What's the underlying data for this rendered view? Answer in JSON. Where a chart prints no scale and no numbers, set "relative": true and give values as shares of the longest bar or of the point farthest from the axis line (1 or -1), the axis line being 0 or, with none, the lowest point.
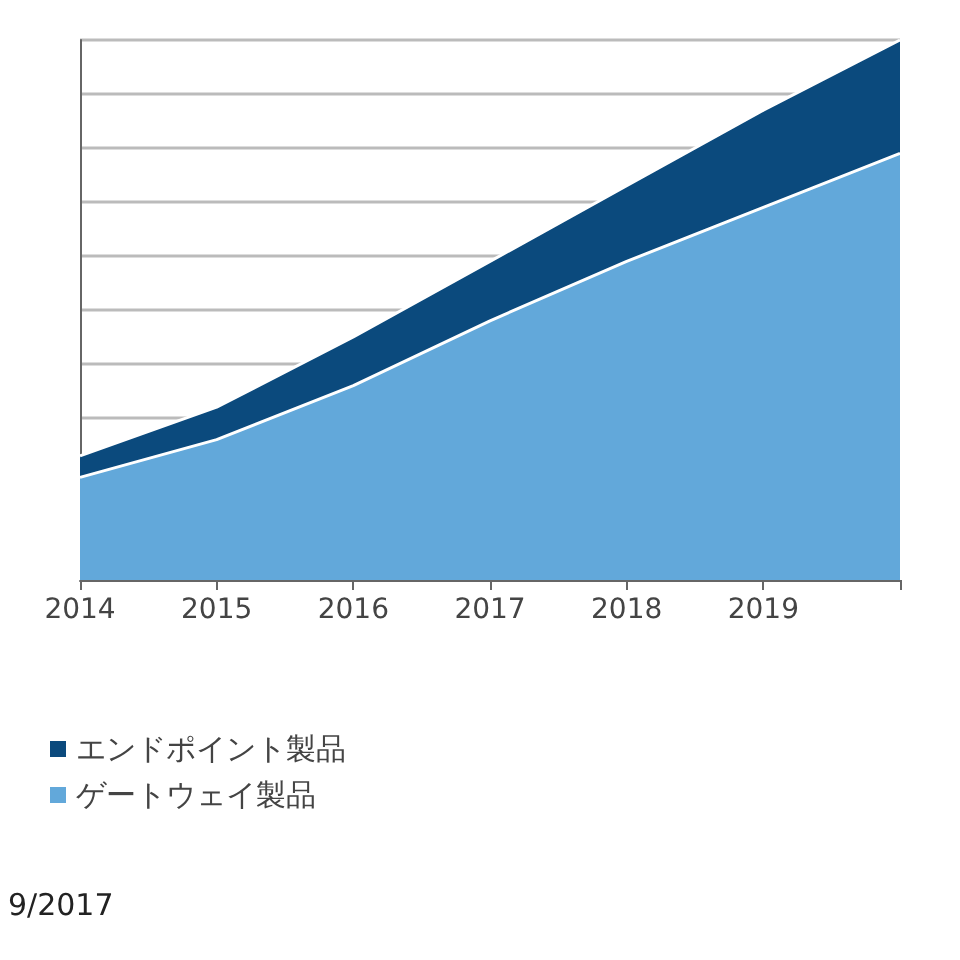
{
  "chart_data": {
    "type": "area",
    "stacked": true,
    "relative": true,
    "x": [
      2014,
      2015,
      2016,
      2017,
      2018,
      2019,
      2020
    ],
    "xlim": [
      2014,
      2020
    ],
    "xticks": [
      2014,
      2015,
      2016,
      2017,
      2018,
      2019,
      {
        "value": 2020,
        "label": null
      }
    ],
    "series": [
      {
        "name": "ゲートウェイ製品",
        "color": "#62a8da",
        "values": [
          0.19,
          0.26,
          0.36,
          0.48,
          0.59,
          0.69,
          0.79
        ]
      },
      {
        "name": "エンドポイント製品",
        "color": "#0b4a7d",
        "values": [
          0.04,
          0.06,
          0.09,
          0.11,
          0.14,
          0.18,
          0.21
        ]
      }
    ],
    "grid": "y",
    "legend": "bottom left",
    "annotations": [
      "9/2017"
    ]
  }
}
